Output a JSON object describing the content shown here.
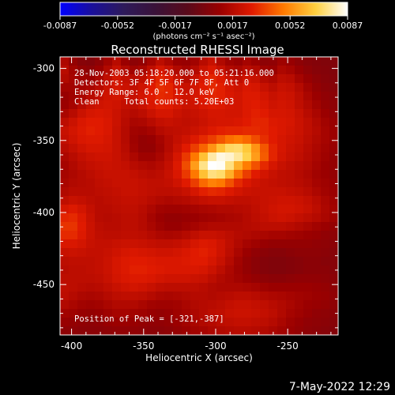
{
  "colorbar": {
    "tick_labels": [
      "-0.0087",
      "-0.0052",
      "-0.0017",
      "0.0017",
      "0.0052",
      "0.0087"
    ],
    "units": "(photons cm⁻² s⁻¹ asec⁻²)",
    "colors": [
      "#0000ff",
      "#1a0f9a",
      "#2e1a5a",
      "#3a1238",
      "#5a0a1a",
      "#9a0000",
      "#e01a00",
      "#ff7a00",
      "#ffd040",
      "#ffffff"
    ]
  },
  "title": "Reconstructed RHESSI Image",
  "info": {
    "time": "28-Nov-2003 05:18:20.000 to 05:21:16.000",
    "detectors": "Detectors: 3F 4F 5F 6F 7F 8F, Att 0",
    "energy": "Energy Range: 6.0 - 12.0 keV",
    "clean": "Clean     Total counts: 5.20E+03"
  },
  "peak_label": "Position of Peak = [-321,-387]",
  "footer_date": "7-May-2022 12:29",
  "chart_data": {
    "type": "heatmap",
    "xlabel": "Heliocentric X (arcsec)",
    "ylabel": "Heliocentric Y (arcsec)",
    "xlim": [
      -408,
      -215
    ],
    "ylim": [
      -485,
      -292
    ],
    "x_ticks": [
      {
        "value": -400,
        "label": "-400"
      },
      {
        "value": -350,
        "label": "-350"
      },
      {
        "value": -300,
        "label": "-300"
      },
      {
        "value": -250,
        "label": "-250"
      }
    ],
    "y_ticks": [
      {
        "value": -300,
        "label": "-300"
      },
      {
        "value": -350,
        "label": "-350"
      },
      {
        "value": -400,
        "label": "-400"
      },
      {
        "value": -450,
        "label": "-450"
      }
    ],
    "value_range": [
      -0.0087,
      0.0087
    ],
    "peak_position": [
      -321,
      -387
    ],
    "grid_size": [
      32,
      32
    ],
    "values": [
      [
        0.0015,
        0.0008,
        0.0004,
        0.0003,
        0.0006,
        0.0012,
        0.0018,
        0.001,
        0.0006,
        0.0008,
        0.0013,
        0.0019,
        0.0015,
        0.001,
        0.0009,
        0.0012,
        0.0018,
        0.0022,
        0.0016,
        0.0011,
        0.0009,
        0.0013,
        0.001,
        0.0006,
        0.0007,
        0.0011,
        0.0009,
        0.0006,
        0.0004,
        0.0003,
        0.0002,
        0.0002
      ],
      [
        0.0018,
        0.0012,
        0.0008,
        0.0006,
        0.001,
        0.0016,
        0.0022,
        0.0016,
        0.0012,
        0.0014,
        0.002,
        0.0026,
        0.0022,
        0.0016,
        0.0013,
        0.0017,
        0.0023,
        0.0027,
        0.0022,
        0.0016,
        0.0014,
        0.0018,
        0.0016,
        0.0011,
        0.001,
        0.0015,
        0.0013,
        0.0009,
        0.0006,
        0.0004,
        0.0003,
        0.0002
      ],
      [
        0.0016,
        0.0013,
        0.0011,
        0.001,
        0.0014,
        0.002,
        0.0025,
        0.0021,
        0.0018,
        0.002,
        0.0026,
        0.0031,
        0.0028,
        0.0022,
        0.0018,
        0.0022,
        0.0027,
        0.0031,
        0.0028,
        0.0023,
        0.002,
        0.0024,
        0.0022,
        0.0017,
        0.0015,
        0.0019,
        0.0018,
        0.0013,
        0.0009,
        0.0006,
        0.0004,
        0.0003
      ],
      [
        0.0012,
        0.0012,
        0.0013,
        0.0014,
        0.0018,
        0.0023,
        0.0026,
        0.0023,
        0.0021,
        0.0024,
        0.0029,
        0.0033,
        0.0031,
        0.0026,
        0.0022,
        0.0025,
        0.0029,
        0.0032,
        0.003,
        0.0026,
        0.0024,
        0.0027,
        0.0026,
        0.0022,
        0.0019,
        0.0022,
        0.0021,
        0.0017,
        0.0012,
        0.0008,
        0.0005,
        0.0004
      ],
      [
        0.0009,
        0.0011,
        0.0014,
        0.0018,
        0.0021,
        0.0024,
        0.0025,
        0.0023,
        0.0022,
        0.0025,
        0.0029,
        0.0032,
        0.0031,
        0.0027,
        0.0024,
        0.0026,
        0.0029,
        0.0031,
        0.003,
        0.0027,
        0.0025,
        0.0028,
        0.0028,
        0.0025,
        0.0022,
        0.0024,
        0.0023,
        0.0019,
        0.0014,
        0.001,
        0.0007,
        0.0005
      ],
      [
        0.001,
        0.0013,
        0.0018,
        0.0022,
        0.0024,
        0.0025,
        0.0024,
        0.0021,
        0.002,
        0.0023,
        0.0027,
        0.003,
        0.0029,
        0.0026,
        0.0023,
        0.0024,
        0.0027,
        0.0029,
        0.0028,
        0.0026,
        0.0025,
        0.0028,
        0.0029,
        0.0027,
        0.0024,
        0.0025,
        0.0024,
        0.002,
        0.0016,
        0.0012,
        0.0008,
        0.0006
      ],
      [
        0.0014,
        0.0018,
        0.0023,
        0.0026,
        0.0027,
        0.0026,
        0.0023,
        0.0019,
        0.0017,
        0.0019,
        0.0023,
        0.0026,
        0.0026,
        0.0023,
        0.0021,
        0.0022,
        0.0024,
        0.0026,
        0.0026,
        0.0025,
        0.0025,
        0.0028,
        0.003,
        0.0029,
        0.0026,
        0.0026,
        0.0025,
        0.0022,
        0.0018,
        0.0014,
        0.001,
        0.0007
      ],
      [
        0.0019,
        0.0023,
        0.0027,
        0.0029,
        0.0029,
        0.0027,
        0.0023,
        0.0018,
        0.0014,
        0.0015,
        0.0018,
        0.0021,
        0.0022,
        0.0021,
        0.002,
        0.0021,
        0.0023,
        0.0025,
        0.0026,
        0.0026,
        0.0027,
        0.0029,
        0.0031,
        0.0031,
        0.0028,
        0.0027,
        0.0026,
        0.0023,
        0.002,
        0.0016,
        0.0012,
        0.0009
      ],
      [
        0.0022,
        0.0025,
        0.0028,
        0.003,
        0.0029,
        0.0027,
        0.0022,
        0.0017,
        0.0012,
        0.0011,
        0.0013,
        0.0017,
        0.0019,
        0.002,
        0.0021,
        0.0023,
        0.0025,
        0.0028,
        0.003,
        0.0031,
        0.0031,
        0.0032,
        0.0032,
        0.0031,
        0.0029,
        0.0027,
        0.0025,
        0.0023,
        0.002,
        0.0017,
        0.0013,
        0.001
      ],
      [
        0.0021,
        0.0024,
        0.0027,
        0.0028,
        0.0028,
        0.0026,
        0.0022,
        0.0017,
        0.0011,
        0.0008,
        0.0009,
        0.0013,
        0.0017,
        0.0021,
        0.0024,
        0.0028,
        0.0032,
        0.0036,
        0.0041,
        0.0046,
        0.0048,
        0.0045,
        0.0039,
        0.0033,
        0.0029,
        0.0026,
        0.0024,
        0.0022,
        0.0019,
        0.0016,
        0.0013,
        0.001
      ],
      [
        0.0018,
        0.0021,
        0.0024,
        0.0026,
        0.0026,
        0.0025,
        0.0022,
        0.0018,
        0.0012,
        0.0008,
        0.0008,
        0.0012,
        0.0017,
        0.0023,
        0.0029,
        0.0036,
        0.0044,
        0.0054,
        0.0064,
        0.0071,
        0.0072,
        0.0066,
        0.0054,
        0.0041,
        0.0031,
        0.0026,
        0.0023,
        0.0021,
        0.0018,
        0.0015,
        0.0012,
        0.0009
      ],
      [
        0.0015,
        0.0018,
        0.0021,
        0.0023,
        0.0024,
        0.0024,
        0.0022,
        0.0019,
        0.0015,
        0.0011,
        0.0011,
        0.0014,
        0.0019,
        0.0026,
        0.0035,
        0.0048,
        0.0064,
        0.0078,
        0.0084,
        0.0082,
        0.0077,
        0.0069,
        0.0056,
        0.0042,
        0.0031,
        0.0025,
        0.0022,
        0.002,
        0.0017,
        0.0014,
        0.0011,
        0.0008
      ],
      [
        0.0013,
        0.0016,
        0.0019,
        0.0021,
        0.0022,
        0.0023,
        0.0022,
        0.0021,
        0.0018,
        0.0016,
        0.0015,
        0.0017,
        0.0021,
        0.0028,
        0.0039,
        0.0056,
        0.0075,
        0.0087,
        0.0086,
        0.0074,
        0.006,
        0.0049,
        0.004,
        0.0032,
        0.0026,
        0.0022,
        0.002,
        0.0018,
        0.0016,
        0.0013,
        0.001,
        0.0008
      ],
      [
        0.0013,
        0.0015,
        0.0017,
        0.0019,
        0.0021,
        0.0022,
        0.0022,
        0.0022,
        0.0021,
        0.0019,
        0.0018,
        0.0019,
        0.0022,
        0.0027,
        0.0035,
        0.0048,
        0.0064,
        0.0074,
        0.0072,
        0.006,
        0.0046,
        0.0036,
        0.0029,
        0.0025,
        0.0022,
        0.002,
        0.0019,
        0.0017,
        0.0015,
        0.0012,
        0.001,
        0.0008
      ],
      [
        0.0014,
        0.0016,
        0.0017,
        0.0018,
        0.002,
        0.0021,
        0.0022,
        0.0022,
        0.0022,
        0.0021,
        0.002,
        0.002,
        0.0021,
        0.0024,
        0.0029,
        0.0036,
        0.0045,
        0.005,
        0.0048,
        0.004,
        0.0032,
        0.0027,
        0.0024,
        0.0022,
        0.0021,
        0.002,
        0.0019,
        0.0018,
        0.0016,
        0.0013,
        0.0011,
        0.0009
      ],
      [
        0.0016,
        0.0018,
        0.0018,
        0.0018,
        0.0019,
        0.002,
        0.0021,
        0.0022,
        0.0022,
        0.0021,
        0.002,
        0.0019,
        0.0019,
        0.002,
        0.0022,
        0.0026,
        0.003,
        0.0032,
        0.0031,
        0.0028,
        0.0025,
        0.0023,
        0.0022,
        0.0022,
        0.0022,
        0.0022,
        0.0021,
        0.002,
        0.0018,
        0.0015,
        0.0012,
        0.001
      ],
      [
        0.002,
        0.0022,
        0.0021,
        0.0019,
        0.0018,
        0.0019,
        0.002,
        0.0021,
        0.0021,
        0.002,
        0.0018,
        0.0016,
        0.0015,
        0.0016,
        0.0017,
        0.0019,
        0.0021,
        0.0022,
        0.0022,
        0.0021,
        0.002,
        0.002,
        0.0021,
        0.0022,
        0.0023,
        0.0024,
        0.0024,
        0.0023,
        0.0021,
        0.0018,
        0.0014,
        0.0011
      ],
      [
        0.0026,
        0.0028,
        0.0025,
        0.0021,
        0.0018,
        0.0018,
        0.0019,
        0.002,
        0.002,
        0.0018,
        0.0015,
        0.0012,
        0.0011,
        0.0011,
        0.0012,
        0.0013,
        0.0014,
        0.0015,
        0.0016,
        0.0016,
        0.0017,
        0.0018,
        0.002,
        0.0022,
        0.0024,
        0.0025,
        0.0025,
        0.0024,
        0.0022,
        0.0019,
        0.0015,
        0.0012
      ],
      [
        0.0031,
        0.0032,
        0.0028,
        0.0022,
        0.0018,
        0.0017,
        0.0018,
        0.0019,
        0.0019,
        0.0017,
        0.0013,
        0.001,
        0.0008,
        0.0008,
        0.0009,
        0.001,
        0.0011,
        0.0012,
        0.0013,
        0.0014,
        0.0015,
        0.0017,
        0.0019,
        0.0021,
        0.0023,
        0.0024,
        0.0023,
        0.0021,
        0.0019,
        0.0017,
        0.0014,
        0.0011
      ],
      [
        0.0034,
        0.0034,
        0.0029,
        0.0023,
        0.0019,
        0.0018,
        0.0018,
        0.0019,
        0.0019,
        0.0017,
        0.0014,
        0.0011,
        0.0009,
        0.0009,
        0.0011,
        0.0013,
        0.0015,
        0.0016,
        0.0016,
        0.0016,
        0.0016,
        0.0017,
        0.0018,
        0.0019,
        0.0019,
        0.0019,
        0.0018,
        0.0016,
        0.0014,
        0.0012,
        0.001,
        0.0008
      ],
      [
        0.0032,
        0.0032,
        0.0028,
        0.0023,
        0.002,
        0.0019,
        0.0019,
        0.002,
        0.002,
        0.0019,
        0.0017,
        0.0015,
        0.0014,
        0.0015,
        0.0017,
        0.002,
        0.0022,
        0.0022,
        0.0021,
        0.0019,
        0.0017,
        0.0016,
        0.0015,
        0.0014,
        0.0013,
        0.0013,
        0.0012,
        0.0011,
        0.001,
        0.0009,
        0.0007,
        0.0006
      ],
      [
        0.0027,
        0.0027,
        0.0025,
        0.0022,
        0.0021,
        0.0021,
        0.0022,
        0.0023,
        0.0023,
        0.0022,
        0.0021,
        0.002,
        0.002,
        0.0021,
        0.0023,
        0.0026,
        0.0028,
        0.0027,
        0.0024,
        0.002,
        0.0016,
        0.0013,
        0.0011,
        0.0009,
        0.0008,
        0.0008,
        0.0008,
        0.0008,
        0.0008,
        0.0007,
        0.0006,
        0.0005
      ],
      [
        0.0022,
        0.0023,
        0.0022,
        0.0021,
        0.0021,
        0.0022,
        0.0024,
        0.0026,
        0.0027,
        0.0026,
        0.0025,
        0.0024,
        0.0024,
        0.0025,
        0.0027,
        0.0029,
        0.003,
        0.0028,
        0.0024,
        0.0019,
        0.0014,
        0.001,
        0.0007,
        0.0005,
        0.0004,
        0.0004,
        0.0005,
        0.0006,
        0.0006,
        0.0006,
        0.0005,
        0.0004
      ],
      [
        0.0019,
        0.002,
        0.002,
        0.002,
        0.0021,
        0.0023,
        0.0026,
        0.0028,
        0.0029,
        0.0029,
        0.0028,
        0.0027,
        0.0027,
        0.0027,
        0.0028,
        0.0029,
        0.0029,
        0.0026,
        0.0022,
        0.0017,
        0.0012,
        0.0008,
        0.0005,
        0.0003,
        0.0002,
        0.0002,
        0.0003,
        0.0004,
        0.0005,
        0.0005,
        0.0004,
        0.0004
      ],
      [
        0.0018,
        0.0019,
        0.0019,
        0.002,
        0.0021,
        0.0023,
        0.0026,
        0.0028,
        0.003,
        0.003,
        0.0029,
        0.0028,
        0.0027,
        0.0027,
        0.0027,
        0.0027,
        0.0026,
        0.0023,
        0.0019,
        0.0015,
        0.0011,
        0.0008,
        0.0005,
        0.0003,
        0.0002,
        0.0002,
        0.0003,
        0.0004,
        0.0005,
        0.0005,
        0.0005,
        0.0004
      ],
      [
        0.0019,
        0.0019,
        0.0019,
        0.0019,
        0.002,
        0.0022,
        0.0025,
        0.0027,
        0.0028,
        0.0028,
        0.0027,
        0.0025,
        0.0024,
        0.0024,
        0.0024,
        0.0023,
        0.0022,
        0.0019,
        0.0016,
        0.0014,
        0.0012,
        0.001,
        0.0008,
        0.0006,
        0.0005,
        0.0005,
        0.0006,
        0.0007,
        0.0007,
        0.0007,
        0.0006,
        0.0005
      ],
      [
        0.002,
        0.0019,
        0.0018,
        0.0017,
        0.0018,
        0.002,
        0.0022,
        0.0024,
        0.0025,
        0.0024,
        0.0022,
        0.002,
        0.0019,
        0.0019,
        0.0019,
        0.0019,
        0.0018,
        0.0016,
        0.0015,
        0.0015,
        0.0015,
        0.0014,
        0.0013,
        0.0011,
        0.001,
        0.001,
        0.001,
        0.001,
        0.001,
        0.0009,
        0.0008,
        0.0006
      ],
      [
        0.0019,
        0.0017,
        0.0015,
        0.0014,
        0.0015,
        0.0017,
        0.0019,
        0.002,
        0.002,
        0.0019,
        0.0017,
        0.0015,
        0.0014,
        0.0015,
        0.0016,
        0.0017,
        0.0017,
        0.0016,
        0.0017,
        0.0018,
        0.0019,
        0.0019,
        0.0018,
        0.0016,
        0.0015,
        0.0014,
        0.0013,
        0.0012,
        0.0011,
        0.001,
        0.0009,
        0.0007
      ],
      [
        0.0016,
        0.0014,
        0.0012,
        0.0011,
        0.0012,
        0.0014,
        0.0016,
        0.0016,
        0.0016,
        0.0014,
        0.0012,
        0.0011,
        0.0011,
        0.0012,
        0.0014,
        0.0016,
        0.0017,
        0.0018,
        0.0019,
        0.0021,
        0.0022,
        0.0022,
        0.0021,
        0.002,
        0.0018,
        0.0016,
        0.0014,
        0.0012,
        0.001,
        0.0009,
        0.0008,
        0.0006
      ],
      [
        0.0012,
        0.0011,
        0.0009,
        0.0008,
        0.0009,
        0.0011,
        0.0013,
        0.0013,
        0.0012,
        0.0011,
        0.0009,
        0.0008,
        0.0009,
        0.0011,
        0.0013,
        0.0015,
        0.0017,
        0.0019,
        0.002,
        0.0022,
        0.0023,
        0.0023,
        0.0022,
        0.0021,
        0.0019,
        0.0016,
        0.0013,
        0.0011,
        0.0009,
        0.0007,
        0.0006,
        0.0005
      ],
      [
        0.0009,
        0.0008,
        0.0007,
        0.0006,
        0.0007,
        0.0009,
        0.001,
        0.001,
        0.0009,
        0.0008,
        0.0007,
        0.0007,
        0.0008,
        0.001,
        0.0012,
        0.0014,
        0.0016,
        0.0017,
        0.0019,
        0.002,
        0.0021,
        0.0021,
        0.002,
        0.0019,
        0.0017,
        0.0014,
        0.0011,
        0.0009,
        0.0007,
        0.0006,
        0.0005,
        0.0004
      ],
      [
        0.0006,
        0.0006,
        0.0005,
        0.0005,
        0.0005,
        0.0006,
        0.0007,
        0.0007,
        0.0007,
        0.0006,
        0.0005,
        0.0005,
        0.0006,
        0.0008,
        0.001,
        0.0012,
        0.0013,
        0.0015,
        0.0016,
        0.0017,
        0.0018,
        0.0018,
        0.0017,
        0.0016,
        0.0014,
        0.0012,
        0.001,
        0.0008,
        0.0006,
        0.0005,
        0.0004,
        0.0003
      ]
    ]
  }
}
